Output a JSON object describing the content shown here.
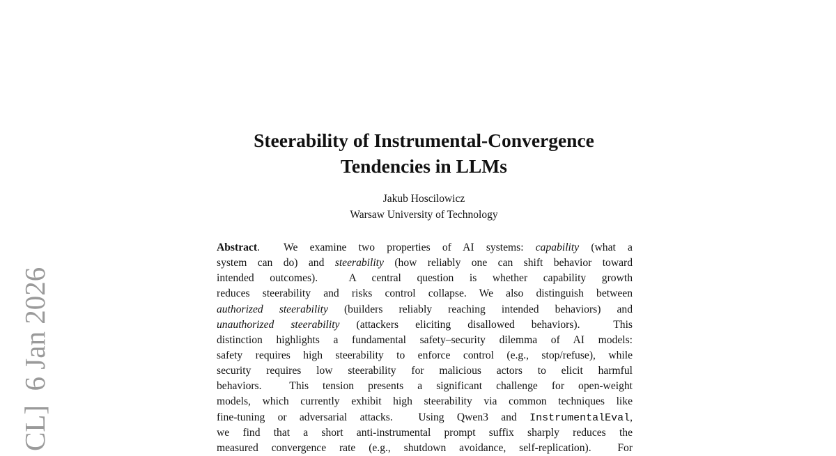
{
  "arxiv_stamp": "CL]  6 Jan 2026",
  "title": [
    "Steerability of Instrumental-Convergence",
    "Tendencies in LLMs"
  ],
  "author": {
    "name": "Jakub Hoscilowicz",
    "affiliation": "Warsaw University of Technology"
  },
  "abstract": {
    "lines": [
      [
        {
          "t": "Abstract",
          "s": "b"
        },
        {
          "t": ".  We examine two properties of AI systems: "
        },
        {
          "t": "capability",
          "s": "it"
        },
        {
          "t": " (what a"
        }
      ],
      [
        {
          "t": "system can do) and "
        },
        {
          "t": "steerability",
          "s": "it"
        },
        {
          "t": " (how reliably one can shift behavior toward"
        }
      ],
      [
        {
          "t": "intended outcomes).  A central question is whether capability growth"
        }
      ],
      [
        {
          "t": "reduces steerability and risks control collapse. We also distinguish between"
        }
      ],
      [
        {
          "t": "authorized steerability",
          "s": "it"
        },
        {
          "t": " (builders reliably reaching intended behaviors) and"
        }
      ],
      [
        {
          "t": "unauthorized steerability",
          "s": "it"
        },
        {
          "t": " (attackers eliciting disallowed behaviors).  This"
        }
      ],
      [
        {
          "t": "distinction highlights a fundamental safety–security dilemma of AI models:"
        }
      ],
      [
        {
          "t": "safety requires high steerability to enforce control (e.g., stop/refuse), while"
        }
      ],
      [
        {
          "t": "security requires low steerability for malicious actors to elicit harmful"
        }
      ],
      [
        {
          "t": "behaviors.  This tension presents a significant challenge for open-weight"
        }
      ],
      [
        {
          "t": "models, which currently exhibit high steerability via common techniques like"
        }
      ],
      [
        {
          "t": "fine-tuning or adversarial attacks.  Using Qwen3 and "
        },
        {
          "t": "InstrumentalEval",
          "s": "mono"
        },
        {
          "t": ","
        }
      ],
      [
        {
          "t": "we find that a short anti-instrumental prompt suffix sharply reduces the"
        }
      ],
      [
        {
          "t": "measured convergence rate (e.g., shutdown avoidance, self-replication).  For"
        }
      ]
    ]
  }
}
